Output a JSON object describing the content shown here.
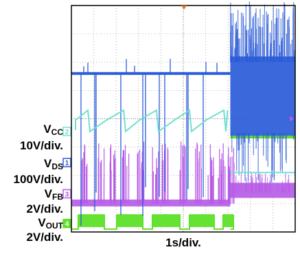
{
  "chart_data": {
    "type": "line",
    "title": "",
    "xlabel": "1s/div.",
    "ylabel": "",
    "grid": true,
    "divisions": {
      "x": 10,
      "y": 8
    },
    "channels": [
      {
        "id": "1",
        "signal": "V",
        "subscript": "DS",
        "scale": "100V/div.",
        "color": "#2a5bd7",
        "description_values": {
          "normal_level_div": 5.6,
          "burst_region_start_div": 7.1
        }
      },
      {
        "id": "2",
        "signal": "V",
        "subscript": "CC",
        "scale": "10V/div.",
        "color": "#6fe0d0",
        "description_values": {
          "sawtooth_high_div": 4.3,
          "sawtooth_low_div": 3.6,
          "fault_level_div": 2.1
        }
      },
      {
        "id": "3",
        "signal": "V",
        "subscript": "FB",
        "scale": "2V/div.",
        "color": "#b65ae6",
        "description_values": {
          "low_level_div": 1.0,
          "high_level_div": 1.3
        }
      },
      {
        "id": "4",
        "signal": "V",
        "subscript": "OUT",
        "scale": "2V/div.",
        "color": "#5ee02a",
        "description_values": {
          "high_level_div": 0.6,
          "low_level_div": 0.1
        }
      }
    ]
  }
}
